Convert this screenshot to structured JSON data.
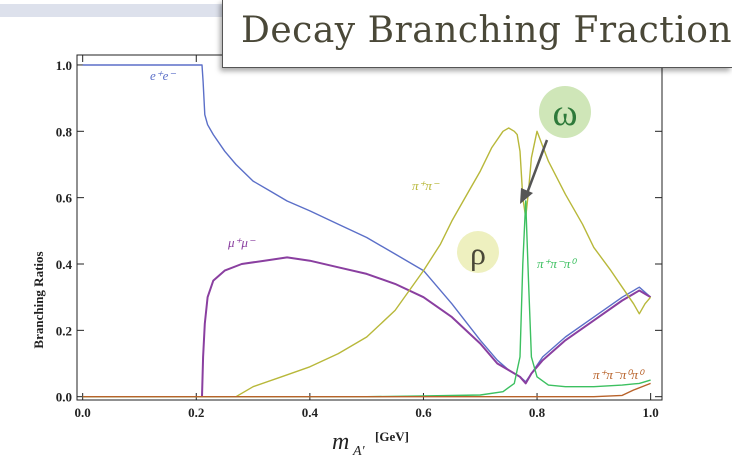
{
  "slide": {
    "title": "Decay Branching Fractions:"
  },
  "callouts": {
    "omega": {
      "label": "ω",
      "color": "#2e7a3a",
      "bubble": "#cfe6b8"
    },
    "rho": {
      "label": "ρ",
      "color": "#4a4838",
      "bubble": "#eef0bf"
    }
  },
  "chart_data": {
    "type": "line",
    "ylabel": "Branching Ratios",
    "xlabel": "m_A'",
    "xlabel_main": "m",
    "xlabel_sub": "A′",
    "xunit": "[GeV]",
    "xlim": [
      -0.01,
      1.02
    ],
    "ylim": [
      -0.01,
      1.03
    ],
    "xticks": [
      0.0,
      0.2,
      0.4,
      0.6,
      0.8,
      1.0
    ],
    "xtick_labels": [
      "0.0",
      "0.2",
      "0.4",
      "0.6",
      "0.8",
      "1.0"
    ],
    "yticks": [
      0.0,
      0.2,
      0.4,
      0.6,
      0.8,
      1.0
    ],
    "ytick_labels": [
      "0.0",
      "0.2",
      "0.4",
      "0.6",
      "0.8",
      "1.0"
    ],
    "grid": false,
    "series": [
      {
        "name": "e⁺e⁻",
        "color": "#5b6fc8",
        "x": [
          0.0,
          0.21,
          0.212,
          0.215,
          0.22,
          0.23,
          0.25,
          0.27,
          0.3,
          0.33,
          0.36,
          0.4,
          0.45,
          0.5,
          0.55,
          0.6,
          0.65,
          0.7,
          0.73,
          0.75,
          0.77,
          0.78,
          0.79,
          0.81,
          0.85,
          0.9,
          0.95,
          0.98,
          1.0
        ],
        "y": [
          1.0,
          1.0,
          0.95,
          0.85,
          0.82,
          0.79,
          0.74,
          0.7,
          0.65,
          0.62,
          0.59,
          0.56,
          0.52,
          0.48,
          0.43,
          0.38,
          0.28,
          0.17,
          0.11,
          0.08,
          0.06,
          0.045,
          0.07,
          0.12,
          0.18,
          0.24,
          0.3,
          0.33,
          0.3
        ]
      },
      {
        "name": "μ⁺μ⁻",
        "color": "#8a3fa0",
        "x": [
          0.21,
          0.212,
          0.215,
          0.22,
          0.23,
          0.25,
          0.28,
          0.32,
          0.36,
          0.4,
          0.45,
          0.5,
          0.55,
          0.6,
          0.65,
          0.7,
          0.73,
          0.75,
          0.77,
          0.78,
          0.79,
          0.81,
          0.85,
          0.9,
          0.95,
          0.98,
          1.0
        ],
        "y": [
          0.0,
          0.12,
          0.22,
          0.3,
          0.35,
          0.38,
          0.4,
          0.41,
          0.42,
          0.41,
          0.39,
          0.37,
          0.34,
          0.3,
          0.24,
          0.16,
          0.1,
          0.08,
          0.06,
          0.04,
          0.07,
          0.11,
          0.17,
          0.23,
          0.29,
          0.32,
          0.3
        ]
      },
      {
        "name": "π⁺π⁻",
        "color": "#b8b83a",
        "x": [
          0.0,
          0.27,
          0.3,
          0.35,
          0.4,
          0.45,
          0.5,
          0.55,
          0.6,
          0.63,
          0.65,
          0.68,
          0.7,
          0.72,
          0.74,
          0.75,
          0.76,
          0.765,
          0.77,
          0.775,
          0.78,
          0.785,
          0.79,
          0.8,
          0.82,
          0.85,
          0.88,
          0.9,
          0.93,
          0.95,
          0.97,
          0.98,
          0.99,
          1.0
        ],
        "y": [
          0.0,
          0.0,
          0.03,
          0.06,
          0.09,
          0.13,
          0.18,
          0.26,
          0.38,
          0.46,
          0.53,
          0.62,
          0.68,
          0.75,
          0.8,
          0.81,
          0.8,
          0.79,
          0.74,
          0.6,
          0.54,
          0.62,
          0.72,
          0.8,
          0.71,
          0.61,
          0.52,
          0.45,
          0.38,
          0.33,
          0.28,
          0.25,
          0.28,
          0.3
        ]
      },
      {
        "name": "π⁺π⁻π⁰",
        "color": "#3cc060",
        "x": [
          0.0,
          0.5,
          0.6,
          0.7,
          0.74,
          0.76,
          0.77,
          0.775,
          0.78,
          0.785,
          0.79,
          0.8,
          0.82,
          0.85,
          0.9,
          0.95,
          0.98,
          1.0
        ],
        "y": [
          0.0,
          0.0,
          0.002,
          0.005,
          0.015,
          0.04,
          0.12,
          0.4,
          0.59,
          0.35,
          0.12,
          0.06,
          0.035,
          0.03,
          0.03,
          0.035,
          0.04,
          0.05
        ]
      },
      {
        "name": "π⁺π⁻π⁰π⁰",
        "color": "#b8622a",
        "x": [
          0.0,
          0.9,
          0.95,
          0.97,
          1.0
        ],
        "y": [
          0.0,
          0.0,
          0.004,
          0.02,
          0.04
        ]
      }
    ]
  }
}
